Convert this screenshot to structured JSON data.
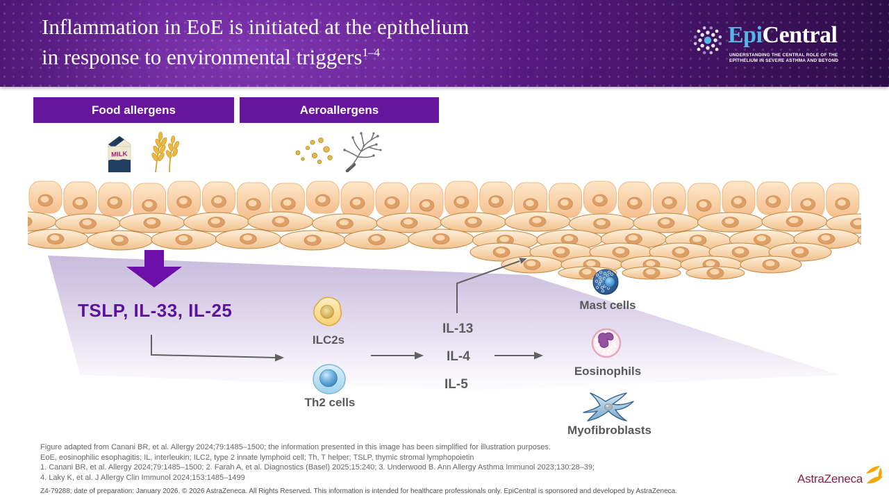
{
  "header": {
    "title_line1": "Inflammation in EoE is initiated at the epithelium",
    "title_line2": "in response to environmental triggers",
    "title_refs": "1–4",
    "logo": {
      "part1": "Epi",
      "part2": "Central",
      "tagline1": "UNDERSTANDING THE CENTRAL ROLE OF THE",
      "tagline2": "EPITHELIUM IN SEVERE ASTHMA AND BEYOND"
    }
  },
  "triggers": {
    "food_label": "Food allergens",
    "aero_label": "Aeroallergens",
    "milk_text": "MILK"
  },
  "pathway": {
    "alarmins": "TSLP, IL-33, IL-25",
    "ilc2_label": "ILC2s",
    "th2_label": "Th2 cells",
    "cytokines": [
      "IL-13",
      "IL-4",
      "IL-5"
    ],
    "effectors": [
      "Mast cells",
      "Eosinophils",
      "Myofibroblasts"
    ]
  },
  "footnotes": [
    "Figure adapted from Canani BR, et al. Allergy 2024;79:1485–1500; the information presented in this image has been simplified for illustration purposes.",
    "EoE, eosinophilic esophagitis; IL, interleukin; ILC2, type 2 innate lymphoid cell; Th, T helper; TSLP, thymic stromal lymphopoietin",
    "1. Canani BR, et al. Allergy 2024;79:1485–1500; 2. Farah A, et al. Diagnostics (Basel) 2025;15:240; 3. Underwood B. Ann Allergy Asthma Immunol 2023;130:28–39;",
    "4. Laky K, et al. J Allergy Clin Immunol 2024;153:1485–1499"
  ],
  "footer": {
    "az_name": "AstraZeneca",
    "disclaimer": "Z4-79288; date of preparation: January 2026. © 2026 AstraZeneca. All Rights Reserved. This information is intended for healthcare professionals only. EpiCentral is sponsored and developed by AstraZeneca."
  },
  "colors": {
    "header_deep": "#3c1058",
    "header_mid": "#5c1b87",
    "header_bright": "#8137b2",
    "panel_purple": "#67159c",
    "arrow_purple": "#6b0fa8",
    "alarmin_text": "#5b1499",
    "epi_blue": "#56b7e6",
    "label_gray": "#595959",
    "footnote_gray": "#666666",
    "az_mulberry": "#8e1e3f",
    "az_gold": "#f2a900",
    "wedge_purple": "#c9bcdd"
  }
}
